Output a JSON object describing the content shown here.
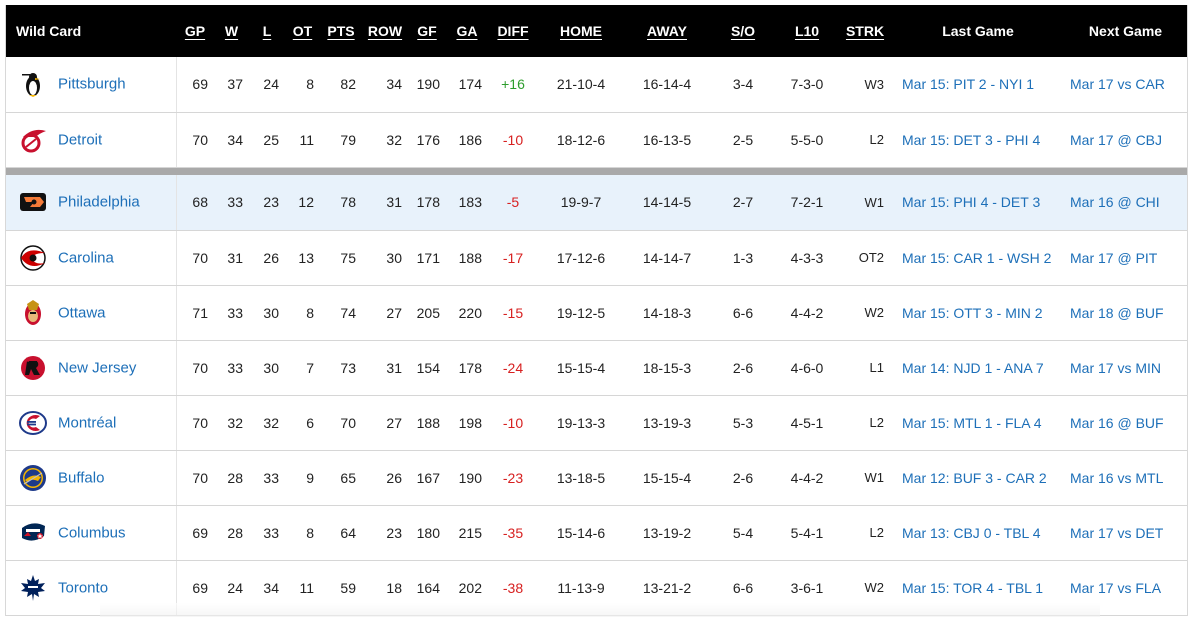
{
  "table": {
    "title": "Wild Card",
    "columns": [
      "GP",
      "W",
      "L",
      "OT",
      "PTS",
      "ROW",
      "GF",
      "GA",
      "DIFF",
      "HOME",
      "AWAY",
      "S/O",
      "L10",
      "STRK",
      "Last Game",
      "Next Game"
    ],
    "rows": [
      {
        "team": "Pittsburgh",
        "logo": "penguins-logo",
        "gp": "69",
        "w": "37",
        "l": "24",
        "ot": "8",
        "pts": "82",
        "row": "34",
        "gf": "190",
        "ga": "174",
        "diff": "+16",
        "home": "21-10-4",
        "away": "16-14-4",
        "so": "3-4",
        "l10": "7-3-0",
        "strk": "W3",
        "last": "Mar 15: PIT 2 - NYI 1",
        "next": "Mar 17 vs CAR"
      },
      {
        "team": "Detroit",
        "logo": "red-wings-logo",
        "gp": "70",
        "w": "34",
        "l": "25",
        "ot": "11",
        "pts": "79",
        "row": "32",
        "gf": "176",
        "ga": "186",
        "diff": "-10",
        "home": "18-12-6",
        "away": "16-13-5",
        "so": "2-5",
        "l10": "5-5-0",
        "strk": "L2",
        "last": "Mar 15: DET 3 - PHI 4",
        "next": "Mar 17 @ CBJ"
      },
      {
        "team": "Philadelphia",
        "logo": "flyers-logo",
        "gp": "68",
        "w": "33",
        "l": "23",
        "ot": "12",
        "pts": "78",
        "row": "31",
        "gf": "178",
        "ga": "183",
        "diff": "-5",
        "home": "19-9-7",
        "away": "14-14-5",
        "so": "2-7",
        "l10": "7-2-1",
        "strk": "W1",
        "last": "Mar 15: PHI 4 - DET 3",
        "next": "Mar 16 @ CHI"
      },
      {
        "team": "Carolina",
        "logo": "hurricanes-logo",
        "gp": "70",
        "w": "31",
        "l": "26",
        "ot": "13",
        "pts": "75",
        "row": "30",
        "gf": "171",
        "ga": "188",
        "diff": "-17",
        "home": "17-12-6",
        "away": "14-14-7",
        "so": "1-3",
        "l10": "4-3-3",
        "strk": "OT2",
        "last": "Mar 15: CAR 1 - WSH 2",
        "next": "Mar 17 @ PIT"
      },
      {
        "team": "Ottawa",
        "logo": "senators-logo",
        "gp": "71",
        "w": "33",
        "l": "30",
        "ot": "8",
        "pts": "74",
        "row": "27",
        "gf": "205",
        "ga": "220",
        "diff": "-15",
        "home": "19-12-5",
        "away": "14-18-3",
        "so": "6-6",
        "l10": "4-4-2",
        "strk": "W2",
        "last": "Mar 15: OTT 3 - MIN 2",
        "next": "Mar 18 @ BUF"
      },
      {
        "team": "New Jersey",
        "logo": "devils-logo",
        "gp": "70",
        "w": "33",
        "l": "30",
        "ot": "7",
        "pts": "73",
        "row": "31",
        "gf": "154",
        "ga": "178",
        "diff": "-24",
        "home": "15-15-4",
        "away": "18-15-3",
        "so": "2-6",
        "l10": "4-6-0",
        "strk": "L1",
        "last": "Mar 14: NJD 1 - ANA 7",
        "next": "Mar 17 vs MIN"
      },
      {
        "team": "Montréal",
        "logo": "canadiens-logo",
        "gp": "70",
        "w": "32",
        "l": "32",
        "ot": "6",
        "pts": "70",
        "row": "27",
        "gf": "188",
        "ga": "198",
        "diff": "-10",
        "home": "19-13-3",
        "away": "13-19-3",
        "so": "5-3",
        "l10": "4-5-1",
        "strk": "L2",
        "last": "Mar 15: MTL 1 - FLA 4",
        "next": "Mar 16 @ BUF"
      },
      {
        "team": "Buffalo",
        "logo": "sabres-logo",
        "gp": "70",
        "w": "28",
        "l": "33",
        "ot": "9",
        "pts": "65",
        "row": "26",
        "gf": "167",
        "ga": "190",
        "diff": "-23",
        "home": "13-18-5",
        "away": "15-15-4",
        "so": "2-6",
        "l10": "4-4-2",
        "strk": "W1",
        "last": "Mar 12: BUF 3 - CAR 2",
        "next": "Mar 16 vs MTL"
      },
      {
        "team": "Columbus",
        "logo": "blue-jackets-logo",
        "gp": "69",
        "w": "28",
        "l": "33",
        "ot": "8",
        "pts": "64",
        "row": "23",
        "gf": "180",
        "ga": "215",
        "diff": "-35",
        "home": "15-14-6",
        "away": "13-19-2",
        "so": "5-4",
        "l10": "5-4-1",
        "strk": "L2",
        "last": "Mar 13: CBJ 0 - TBL 4",
        "next": "Mar 17 vs DET"
      },
      {
        "team": "Toronto",
        "logo": "maple-leafs-logo",
        "gp": "69",
        "w": "24",
        "l": "34",
        "ot": "11",
        "pts": "59",
        "row": "18",
        "gf": "164",
        "ga": "202",
        "diff": "-38",
        "home": "11-13-9",
        "away": "13-21-2",
        "so": "6-6",
        "l10": "3-6-1",
        "strk": "W2",
        "last": "Mar 15: TOR 4 - TBL 1",
        "next": "Mar 17 vs FLA"
      }
    ]
  },
  "colors": {
    "header_bg": "#000000",
    "link": "#1d6fb8",
    "positive": "#2e9d2e",
    "negative": "#d72020",
    "highlight": "#e8f2fb",
    "separator": "#a9a9a9"
  }
}
